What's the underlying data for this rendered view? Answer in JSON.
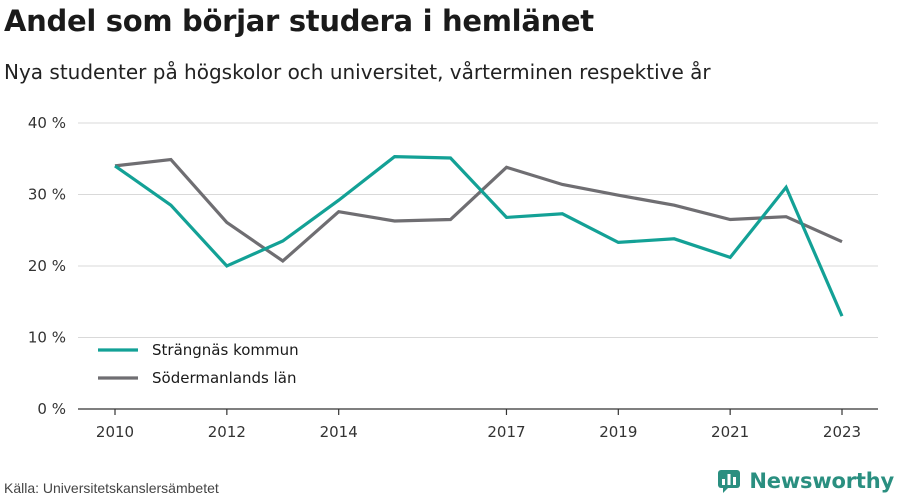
{
  "header": {
    "title": "Andel som börjar studera i hemlänet",
    "subtitle": "Nya studenter på högskolor och universitet, vårterminen respektive år"
  },
  "footer": {
    "source": "Källa: Universitetskanslersämbetet",
    "brand": "Newsworthy"
  },
  "colors": {
    "series1": "#13a196",
    "series2": "#6f6e72",
    "grid": "#d9d9d9",
    "axis": "#333333",
    "brand": "#2a8f80"
  },
  "chart_data": {
    "type": "line",
    "x": [
      2010,
      2011,
      2012,
      2013,
      2014,
      2015,
      2016,
      2017,
      2018,
      2019,
      2020,
      2021,
      2022,
      2023
    ],
    "x_ticks": [
      "2010",
      "2012",
      "2014",
      "2017",
      "2019",
      "2021",
      "2023"
    ],
    "y_ticks": [
      "0 %",
      "10 %",
      "20 %",
      "30 %",
      "40 %"
    ],
    "ylim": [
      0,
      40
    ],
    "grid": true,
    "legend_position": "bottom-left",
    "series": [
      {
        "name": "Strängnäs kommun",
        "color": "#13a196",
        "values": [
          34.0,
          28.5,
          20.0,
          23.5,
          29.2,
          35.3,
          35.1,
          26.8,
          27.3,
          23.3,
          23.8,
          21.2,
          31.0,
          13.0
        ]
      },
      {
        "name": "Södermanlands län",
        "color": "#6f6e72",
        "values": [
          34.0,
          34.9,
          26.1,
          20.7,
          27.6,
          26.3,
          26.5,
          33.8,
          31.4,
          29.9,
          28.5,
          26.5,
          26.9,
          23.4
        ]
      }
    ]
  }
}
